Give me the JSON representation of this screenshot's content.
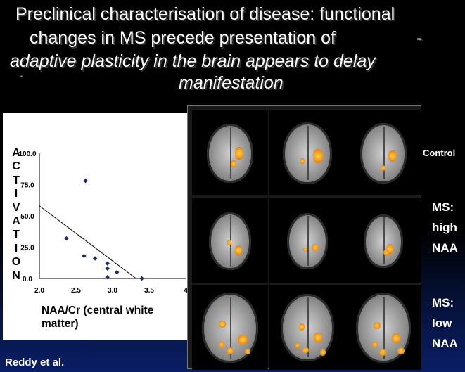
{
  "title": {
    "line1": "Preclinical characterisation of disease: functional",
    "line2": "changes in MS precede presentation of",
    "line2_dash": "-",
    "line3": "adaptive plasticity in the brain appears to delay",
    "line4": "manifestation",
    "mark": "“"
  },
  "chart_data": {
    "type": "scatter",
    "xlabel": "NAA/Cr (central white matter)",
    "ylabel": "ACTIVATION",
    "ylabel_letters": [
      "A",
      "C",
      "T",
      "I",
      "V",
      "A",
      "T",
      "I",
      "O",
      "N"
    ],
    "xlim": [
      2.0,
      4.0
    ],
    "ylim": [
      0,
      100
    ],
    "x_ticks": [
      "2.0",
      "2.5",
      "3.0",
      "3.5",
      "4"
    ],
    "y_ticks": [
      "0.0",
      "25.0",
      "50.0",
      "75.0",
      "100.0"
    ],
    "points": [
      {
        "x": 2.63,
        "y": 78
      },
      {
        "x": 2.37,
        "y": 32
      },
      {
        "x": 2.61,
        "y": 18
      },
      {
        "x": 2.76,
        "y": 16
      },
      {
        "x": 2.93,
        "y": 12
      },
      {
        "x": 2.93,
        "y": 8
      },
      {
        "x": 3.06,
        "y": 5
      },
      {
        "x": 2.93,
        "y": 1
      },
      {
        "x": 3.4,
        "y": 0
      }
    ],
    "trendline": {
      "x1": 2.0,
      "y1": 58,
      "x2": 3.32,
      "y2": 0
    },
    "grid": false
  },
  "credit": "Reddy et al.",
  "row_labels": {
    "control": "Control",
    "ms_high": [
      "MS:",
      "high",
      "NAA"
    ],
    "ms_low": [
      "MS:",
      "low",
      "NAA"
    ]
  },
  "colors": {
    "background": "#000000",
    "activation": "#f39a1a",
    "point": "#1a2a6c",
    "text": "#ffffff"
  }
}
